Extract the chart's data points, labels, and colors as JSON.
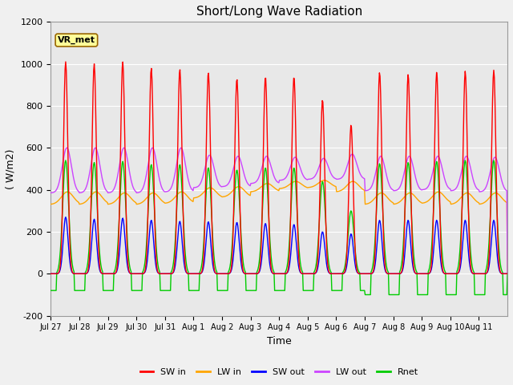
{
  "title": "Short/Long Wave Radiation",
  "xlabel": "Time",
  "ylabel": "( W/m2)",
  "ylim": [
    -200,
    1200
  ],
  "yticks": [
    -200,
    0,
    200,
    400,
    600,
    800,
    1000,
    1200
  ],
  "xtick_labels": [
    "Jul 27",
    "Jul 28",
    "Jul 29",
    "Jul 30",
    "Jul 31",
    "Aug 1",
    "Aug 2",
    "Aug 3",
    "Aug 4",
    "Aug 5",
    "Aug 6",
    "Aug 7",
    "Aug 8",
    "Aug 9",
    "Aug 10",
    "Aug 11"
  ],
  "bg_color": "#e8e8e8",
  "series_colors": {
    "SW_in": "#ff0000",
    "LW_in": "#ffa500",
    "SW_out": "#0000ff",
    "LW_out": "#cc44ff",
    "Rnet": "#00cc00"
  },
  "legend_labels": [
    "SW in",
    "LW in",
    "SW out",
    "LW out",
    "Rnet"
  ],
  "vr_met_label": "VR_met",
  "n_days": 16,
  "SW_in_peaks": [
    1010,
    1000,
    1010,
    980,
    975,
    960,
    930,
    940,
    940,
    830,
    710,
    960,
    950,
    960,
    965,
    970
  ],
  "LW_in_base": [
    330,
    330,
    330,
    330,
    335,
    360,
    365,
    390,
    405,
    410,
    390,
    330,
    330,
    335,
    330,
    330
  ],
  "LW_in_day_bump": [
    60,
    60,
    55,
    55,
    55,
    50,
    50,
    40,
    35,
    35,
    50,
    55,
    55,
    55,
    55,
    55
  ],
  "SW_out_peaks": [
    270,
    260,
    265,
    255,
    250,
    248,
    245,
    240,
    235,
    200,
    190,
    255,
    255,
    255,
    255,
    255
  ],
  "LW_out_base": [
    385,
    385,
    385,
    385,
    390,
    410,
    415,
    430,
    445,
    450,
    450,
    395,
    395,
    400,
    395,
    390
  ],
  "LW_out_day_bump": [
    215,
    215,
    215,
    215,
    210,
    155,
    145,
    130,
    110,
    100,
    120,
    165,
    165,
    160,
    165,
    165
  ],
  "Rnet_night": [
    -80,
    -80,
    -80,
    -80,
    -80,
    -80,
    -80,
    -80,
    -80,
    -80,
    -80,
    -100,
    -100,
    -100,
    -100,
    -100
  ],
  "Rnet_peaks": [
    540,
    530,
    535,
    520,
    520,
    505,
    495,
    505,
    505,
    440,
    300,
    525,
    530,
    535,
    540,
    540
  ]
}
